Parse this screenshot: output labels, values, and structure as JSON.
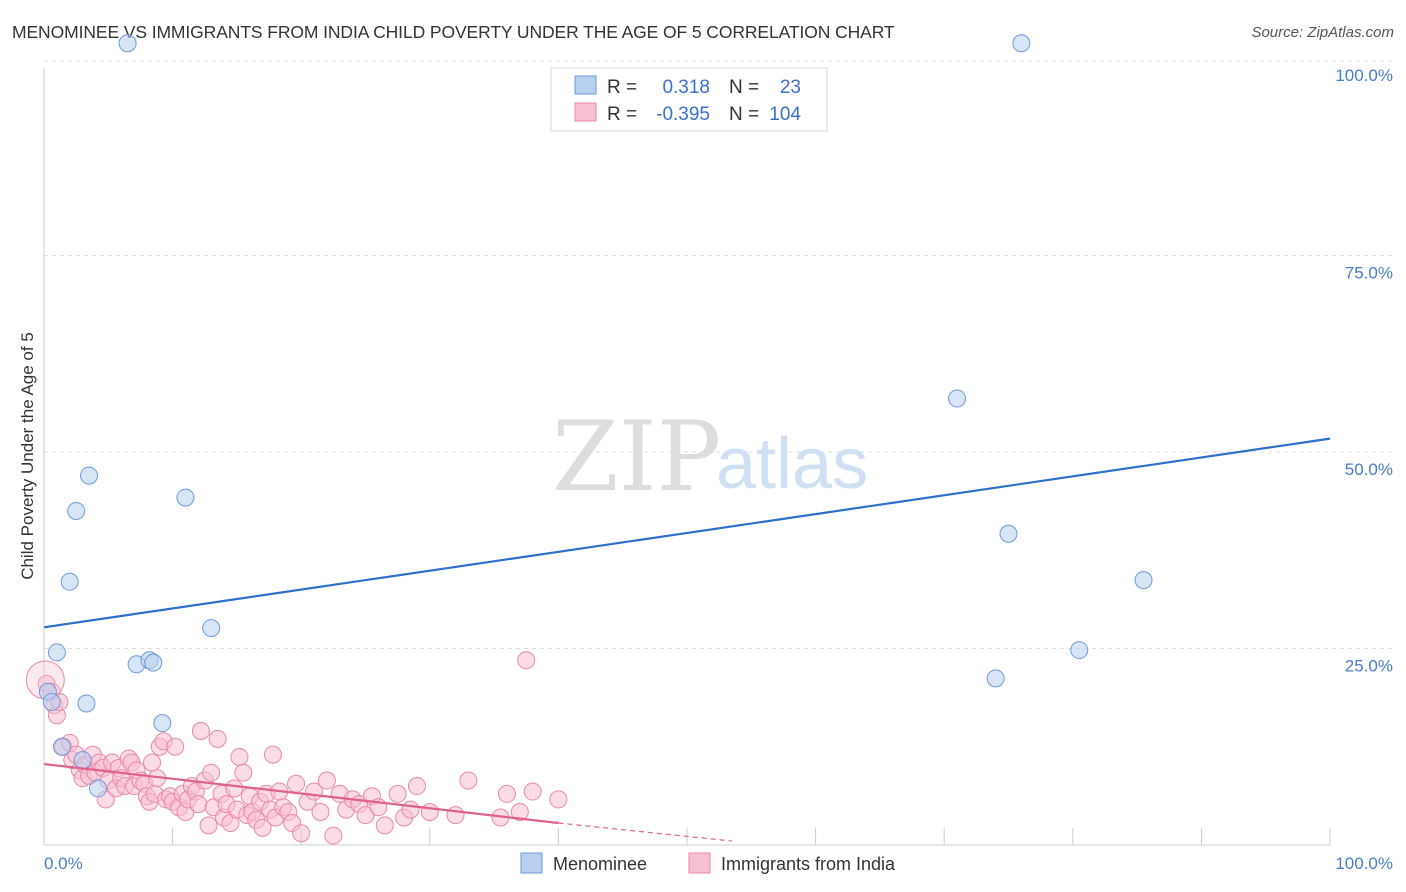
{
  "header": {
    "title": "MENOMINEE VS IMMIGRANTS FROM INDIA CHILD POVERTY UNDER THE AGE OF 5 CORRELATION CHART",
    "source": "Source: ZipAtlas.com"
  },
  "watermark": {
    "zip": "ZIP",
    "atlas": "atlas"
  },
  "legend": {
    "rows": [
      {
        "r_label": "R =",
        "r_value": "0.318",
        "n_label": "N =",
        "n_value": "23"
      },
      {
        "r_label": "R =",
        "r_value": "-0.395",
        "n_label": "N =",
        "n_value": "104"
      }
    ]
  },
  "colors": {
    "menominee_fill": "#b8d0f0",
    "menominee_stroke": "#6f9ad8",
    "menominee_line": "#2f6fcc",
    "india_fill": "#f7c0d2",
    "india_stroke": "#e889a8",
    "india_line": "#e0608c",
    "grid": "#dddddd",
    "tick_text": "#4a7cc8"
  },
  "chart_data": {
    "type": "scatter",
    "title": "MENOMINEE VS IMMIGRANTS FROM INDIA CHILD POVERTY UNDER THE AGE OF 5 CORRELATION CHART",
    "xlabel": "",
    "ylabel": "Child Poverty Under the Age of 5",
    "xlim": [
      0,
      100
    ],
    "ylim": [
      0,
      100
    ],
    "x_tick_labels": [
      "0.0%",
      "100.0%"
    ],
    "y_ticks": [
      25,
      50,
      75,
      100
    ],
    "y_tick_labels": [
      "25.0%",
      "50.0%",
      "75.0%",
      "100.0%"
    ],
    "grid": true,
    "legend_position": "top-center",
    "series": [
      {
        "name": "Menominee",
        "color": "#6f9ad8",
        "r": 0.318,
        "n": 23,
        "trend": {
          "x": [
            0,
            100
          ],
          "y": [
            27.7,
            51.7
          ]
        },
        "points": [
          [
            6.5,
            102
          ],
          [
            76,
            102
          ],
          [
            3.5,
            47
          ],
          [
            1,
            24.5
          ],
          [
            2.5,
            42.5
          ],
          [
            2,
            33.5
          ],
          [
            11,
            44.2
          ],
          [
            13,
            27.6
          ],
          [
            7.2,
            23
          ],
          [
            8.2,
            23.5
          ],
          [
            8.5,
            23.2
          ],
          [
            9.2,
            15.5
          ],
          [
            3.3,
            18
          ],
          [
            0.3,
            19.5
          ],
          [
            0.6,
            18.2
          ],
          [
            1.4,
            12.5
          ],
          [
            3,
            10.8
          ],
          [
            4.2,
            7.2
          ],
          [
            71,
            56.8
          ],
          [
            75,
            39.6
          ],
          [
            85.5,
            33.7
          ],
          [
            80.5,
            24.8
          ],
          [
            74,
            21.2
          ]
        ]
      },
      {
        "name": "Immigrants from India",
        "color": "#e889a8",
        "r": -0.395,
        "n": 104,
        "trend": {
          "x": [
            0,
            40
          ],
          "y": [
            10.3,
            2.8
          ],
          "dashed_to": [
            53.5,
            0.5
          ]
        },
        "points": [
          [
            0.2,
            20.5
          ],
          [
            0.6,
            19.5
          ],
          [
            0.8,
            17.8
          ],
          [
            1,
            16.5
          ],
          [
            1.2,
            18.2
          ],
          [
            1.5,
            12.5
          ],
          [
            2,
            13
          ],
          [
            2.2,
            10.8
          ],
          [
            2.5,
            11.5
          ],
          [
            2.8,
            9.5
          ],
          [
            3,
            8.5
          ],
          [
            3.2,
            10.2
          ],
          [
            3.5,
            8.8
          ],
          [
            3.8,
            11.5
          ],
          [
            4,
            9.2
          ],
          [
            4.3,
            10.5
          ],
          [
            4.6,
            9.8
          ],
          [
            4.8,
            5.8
          ],
          [
            5,
            8.2
          ],
          [
            5.3,
            10.5
          ],
          [
            5.6,
            7.2
          ],
          [
            5.8,
            9.8
          ],
          [
            6,
            8.5
          ],
          [
            6.3,
            7.5
          ],
          [
            6.6,
            11
          ],
          [
            6.8,
            10.5
          ],
          [
            7,
            7.5
          ],
          [
            7.2,
            9.5
          ],
          [
            7.5,
            8.2
          ],
          [
            7.8,
            7.8
          ],
          [
            8,
            6.2
          ],
          [
            8.2,
            5.5
          ],
          [
            8.4,
            10.5
          ],
          [
            8.6,
            6.5
          ],
          [
            8.8,
            8.5
          ],
          [
            9,
            12.5
          ],
          [
            9.3,
            13.2
          ],
          [
            9.5,
            5.8
          ],
          [
            9.8,
            6.2
          ],
          [
            10,
            5.5
          ],
          [
            10.2,
            12.5
          ],
          [
            10.5,
            4.8
          ],
          [
            10.8,
            6.5
          ],
          [
            11,
            4.2
          ],
          [
            11.2,
            5.8
          ],
          [
            11.5,
            7.5
          ],
          [
            11.8,
            6.8
          ],
          [
            12,
            5.2
          ],
          [
            12.2,
            14.5
          ],
          [
            12.5,
            8.2
          ],
          [
            12.8,
            2.5
          ],
          [
            13,
            9.2
          ],
          [
            13.2,
            4.8
          ],
          [
            13.5,
            13.5
          ],
          [
            13.8,
            6.5
          ],
          [
            14,
            3.5
          ],
          [
            14.2,
            5.2
          ],
          [
            14.5,
            2.8
          ],
          [
            14.8,
            7.2
          ],
          [
            15,
            4.5
          ],
          [
            15.2,
            11.2
          ],
          [
            15.5,
            9.2
          ],
          [
            15.8,
            3.8
          ],
          [
            16,
            6.2
          ],
          [
            16.2,
            4.2
          ],
          [
            16.5,
            3.2
          ],
          [
            16.8,
            5.5
          ],
          [
            17,
            2.2
          ],
          [
            17.3,
            6.5
          ],
          [
            17.6,
            4.5
          ],
          [
            17.8,
            11.5
          ],
          [
            18,
            3.5
          ],
          [
            18.3,
            6.8
          ],
          [
            18.6,
            4.8
          ],
          [
            19,
            4.2
          ],
          [
            19.3,
            2.8
          ],
          [
            19.6,
            7.8
          ],
          [
            20,
            1.5
          ],
          [
            20.5,
            5.5
          ],
          [
            21,
            6.8
          ],
          [
            21.5,
            4.2
          ],
          [
            22,
            8.2
          ],
          [
            22.5,
            1.2
          ],
          [
            23,
            6.5
          ],
          [
            23.5,
            4.5
          ],
          [
            24,
            5.8
          ],
          [
            24.5,
            5.2
          ],
          [
            25,
            3.8
          ],
          [
            25.5,
            6.2
          ],
          [
            26,
            4.8
          ],
          [
            26.5,
            2.5
          ],
          [
            27.5,
            6.5
          ],
          [
            28,
            3.5
          ],
          [
            28.5,
            4.5
          ],
          [
            29,
            7.5
          ],
          [
            30,
            4.2
          ],
          [
            32,
            3.8
          ],
          [
            33,
            8.2
          ],
          [
            35.5,
            3.5
          ],
          [
            36,
            6.5
          ],
          [
            37,
            4.2
          ],
          [
            37.5,
            23.5
          ],
          [
            38,
            6.8
          ],
          [
            40,
            5.8
          ]
        ]
      }
    ]
  },
  "bottom_legend": {
    "items": [
      {
        "label": "Menominee"
      },
      {
        "label": "Immigrants from India"
      }
    ]
  }
}
